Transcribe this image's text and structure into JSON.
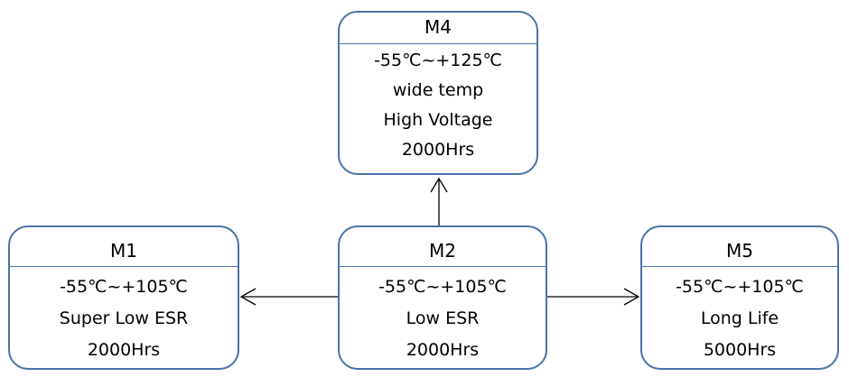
{
  "colors": {
    "box_border": "#4a74a8",
    "arrow": "#000000",
    "text": "#000000"
  },
  "nodes": {
    "m4": {
      "title": "M4",
      "lines": [
        "-55℃~+125℃",
        "wide temp",
        "High Voltage",
        "2000Hrs"
      ]
    },
    "m1": {
      "title": "M1",
      "lines": [
        "-55℃~+105℃",
        "Super Low ESR",
        "2000Hrs"
      ]
    },
    "m2": {
      "title": "M2",
      "lines": [
        "-55℃~+105℃",
        "Low ESR",
        "2000Hrs"
      ]
    },
    "m5": {
      "title": "M5",
      "lines": [
        "-55℃~+105℃",
        "Long Life",
        "5000Hrs"
      ]
    }
  },
  "edges": [
    {
      "from": "M2",
      "to": "M4"
    },
    {
      "from": "M2",
      "to": "M1"
    },
    {
      "from": "M2",
      "to": "M5"
    }
  ]
}
